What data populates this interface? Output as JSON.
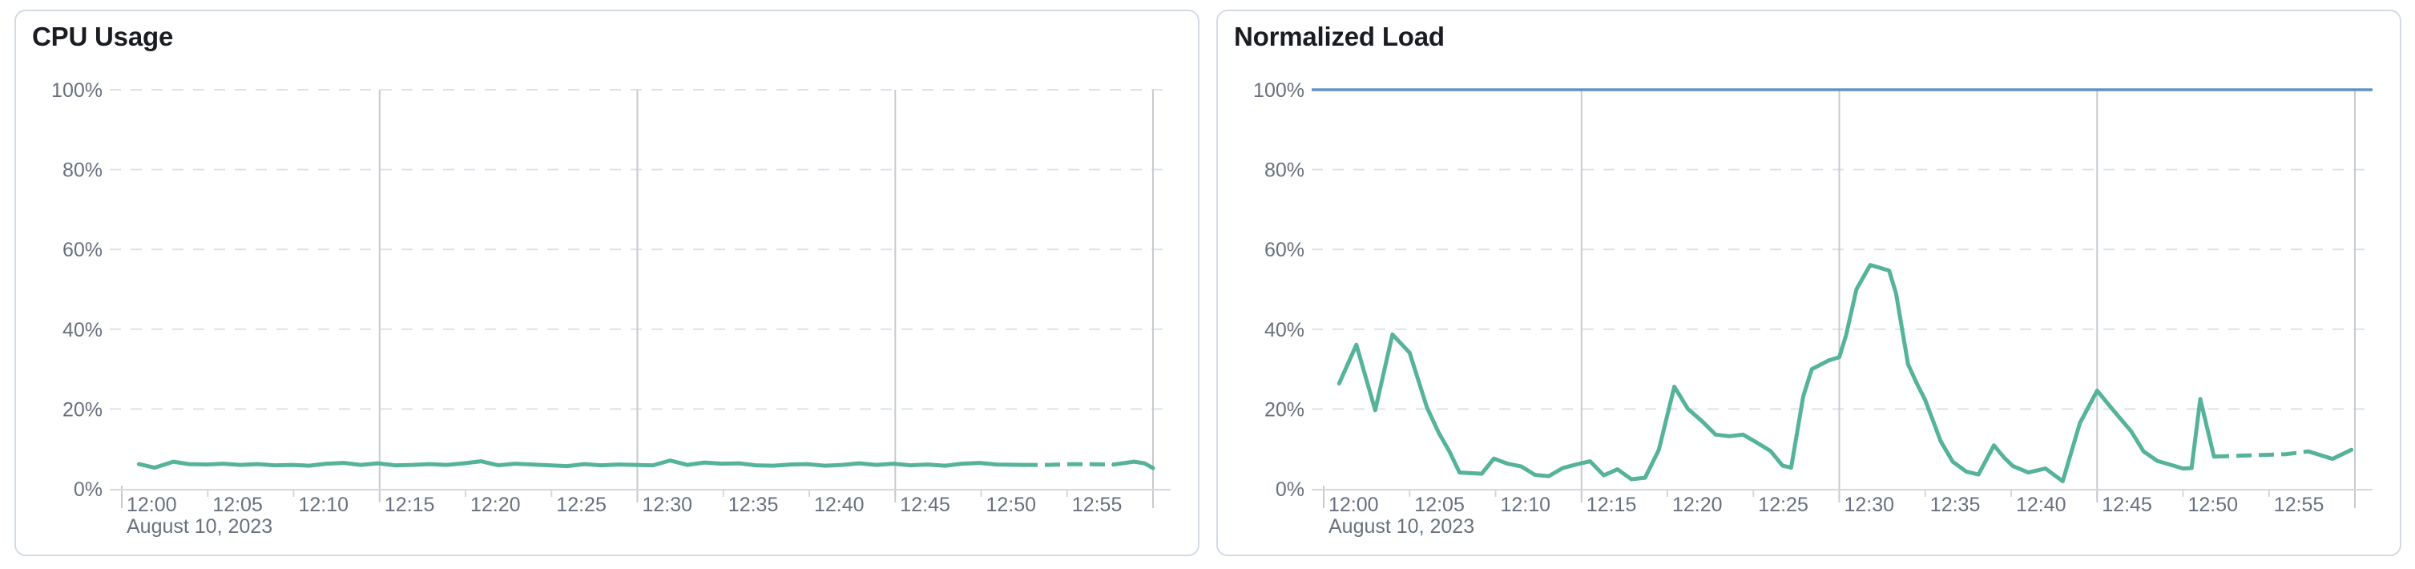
{
  "page": {
    "background": "#ffffff"
  },
  "colors": {
    "series_green": "#54b399",
    "limit_blue": "#6092c0",
    "grid_dashed": "#dce2ec",
    "grid_solid": "#c7cacf",
    "axis_line": "#d3d8e0",
    "tick_text": "#69707d",
    "title_text": "#1a1c21",
    "card_border": "#d3dae6",
    "card_bg": "#ffffff"
  },
  "chart_data": [
    {
      "type": "line",
      "title": "CPU Usage",
      "date_label": "August 10, 2023",
      "x_tick_labels": [
        "12:00",
        "12:05",
        "12:10",
        "12:15",
        "12:20",
        "12:25",
        "12:30",
        "12:35",
        "12:40",
        "12:45",
        "12:50",
        "12:55"
      ],
      "x_tick_minutes": [
        0,
        5,
        10,
        15,
        20,
        25,
        30,
        35,
        40,
        45,
        50,
        55
      ],
      "major_grid_minutes": [
        15,
        30,
        45
      ],
      "edge_grid_minutes": [
        0,
        60
      ],
      "y_tick_labels": [
        "0%",
        "20%",
        "40%",
        "60%",
        "80%",
        "100%"
      ],
      "y_tick_values": [
        0,
        20,
        40,
        60,
        80,
        100
      ],
      "ylim": [
        0,
        100
      ],
      "xlim_minutes": [
        0,
        61
      ],
      "grid": "horizontal-dashed, vertical-solid-every-15min",
      "legend": "none",
      "series": [
        {
          "name": "cpu-usage",
          "color": "#54b399",
          "dashed_from_min": 52.4,
          "dashed_to_min": 57.7,
          "points_min_pct": [
            [
              1.0,
              6.2
            ],
            [
              1.9,
              5.3
            ],
            [
              3.0,
              6.8
            ],
            [
              3.9,
              6.2
            ],
            [
              4.9,
              6.1
            ],
            [
              5.9,
              6.3
            ],
            [
              6.9,
              6.0
            ],
            [
              7.9,
              6.2
            ],
            [
              8.9,
              5.9
            ],
            [
              9.9,
              6.0
            ],
            [
              10.9,
              5.8
            ],
            [
              11.9,
              6.3
            ],
            [
              12.9,
              6.5
            ],
            [
              13.9,
              6.0
            ],
            [
              14.9,
              6.4
            ],
            [
              15.9,
              5.9
            ],
            [
              16.9,
              6.0
            ],
            [
              17.9,
              6.2
            ],
            [
              18.9,
              6.0
            ],
            [
              19.9,
              6.4
            ],
            [
              20.9,
              6.9
            ],
            [
              21.9,
              5.9
            ],
            [
              22.9,
              6.3
            ],
            [
              23.9,
              6.1
            ],
            [
              24.9,
              5.9
            ],
            [
              25.9,
              5.7
            ],
            [
              26.9,
              6.2
            ],
            [
              27.9,
              5.9
            ],
            [
              28.9,
              6.1
            ],
            [
              29.9,
              6.0
            ],
            [
              30.9,
              5.9
            ],
            [
              31.9,
              7.1
            ],
            [
              32.9,
              6.0
            ],
            [
              33.9,
              6.6
            ],
            [
              34.9,
              6.3
            ],
            [
              35.9,
              6.4
            ],
            [
              36.9,
              5.9
            ],
            [
              37.9,
              5.8
            ],
            [
              38.9,
              6.1
            ],
            [
              39.9,
              6.2
            ],
            [
              40.9,
              5.8
            ],
            [
              41.9,
              6.0
            ],
            [
              42.9,
              6.4
            ],
            [
              43.9,
              6.0
            ],
            [
              44.9,
              6.3
            ],
            [
              45.9,
              5.9
            ],
            [
              46.9,
              6.1
            ],
            [
              47.9,
              5.8
            ],
            [
              48.9,
              6.3
            ],
            [
              49.9,
              6.5
            ],
            [
              50.9,
              6.1
            ],
            [
              52.4,
              6.0
            ],
            [
              53.9,
              6.0
            ],
            [
              55.4,
              6.2
            ],
            [
              57.7,
              6.1
            ],
            [
              58.9,
              6.8
            ],
            [
              59.5,
              6.4
            ],
            [
              60.0,
              5.2
            ]
          ]
        }
      ]
    },
    {
      "type": "line",
      "title": "Normalized Load",
      "date_label": "August 10, 2023",
      "x_tick_labels": [
        "12:00",
        "12:05",
        "12:10",
        "12:15",
        "12:20",
        "12:25",
        "12:30",
        "12:35",
        "12:40",
        "12:45",
        "12:50",
        "12:55"
      ],
      "x_tick_minutes": [
        0,
        5,
        10,
        15,
        20,
        25,
        30,
        35,
        40,
        45,
        50,
        55
      ],
      "major_grid_minutes": [
        15,
        30,
        45
      ],
      "edge_grid_minutes": [
        0,
        60
      ],
      "y_tick_labels": [
        "0%",
        "20%",
        "40%",
        "60%",
        "80%",
        "100%"
      ],
      "y_tick_values": [
        0,
        20,
        40,
        60,
        80,
        100
      ],
      "ylim": [
        0,
        100
      ],
      "xlim_minutes": [
        0,
        61
      ],
      "grid": "horizontal-dashed, vertical-solid-every-15min",
      "legend": "none",
      "limit_line": {
        "value_pct": 100,
        "color": "#6092c0"
      },
      "series": [
        {
          "name": "normalized-load",
          "color": "#54b399",
          "dashed_from_min": 51.8,
          "dashed_to_min": 57.3,
          "points_min_pct": [
            [
              0.9,
              26.4
            ],
            [
              1.9,
              36.1
            ],
            [
              3.0,
              19.7
            ],
            [
              4.0,
              38.7
            ],
            [
              5.0,
              34.1
            ],
            [
              6.0,
              20.5
            ],
            [
              6.7,
              14.0
            ],
            [
              7.3,
              9.5
            ],
            [
              7.9,
              4.1
            ],
            [
              9.2,
              3.8
            ],
            [
              9.9,
              7.6
            ],
            [
              10.7,
              6.3
            ],
            [
              11.5,
              5.6
            ],
            [
              12.3,
              3.5
            ],
            [
              13.1,
              3.2
            ],
            [
              13.9,
              5.2
            ],
            [
              14.7,
              6.1
            ],
            [
              15.5,
              6.9
            ],
            [
              16.3,
              3.4
            ],
            [
              17.1,
              4.9
            ],
            [
              17.9,
              2.4
            ],
            [
              18.7,
              2.8
            ],
            [
              19.5,
              9.8
            ],
            [
              20.4,
              25.6
            ],
            [
              21.2,
              20.0
            ],
            [
              22.0,
              17.0
            ],
            [
              22.8,
              13.6
            ],
            [
              23.6,
              13.2
            ],
            [
              24.4,
              13.6
            ],
            [
              25.2,
              11.6
            ],
            [
              26.0,
              9.5
            ],
            [
              26.7,
              5.8
            ],
            [
              27.2,
              5.3
            ],
            [
              27.9,
              23.2
            ],
            [
              28.4,
              30.0
            ],
            [
              29.4,
              32.2
            ],
            [
              30.0,
              33.0
            ],
            [
              30.4,
              38.6
            ],
            [
              31.0,
              50.0
            ],
            [
              31.8,
              56.1
            ],
            [
              32.9,
              54.7
            ],
            [
              33.3,
              49.0
            ],
            [
              34.0,
              31.2
            ],
            [
              34.5,
              26.5
            ],
            [
              35.0,
              22.2
            ],
            [
              35.9,
              11.9
            ],
            [
              36.6,
              6.8
            ],
            [
              37.4,
              4.3
            ],
            [
              38.1,
              3.6
            ],
            [
              39.0,
              10.9
            ],
            [
              39.6,
              7.8
            ],
            [
              40.1,
              5.7
            ],
            [
              41.0,
              4.1
            ],
            [
              42.0,
              5.1
            ],
            [
              43.0,
              1.9
            ],
            [
              44.0,
              16.5
            ],
            [
              45.0,
              24.6
            ],
            [
              46.0,
              19.4
            ],
            [
              47.0,
              14.3
            ],
            [
              47.7,
              9.4
            ],
            [
              48.5,
              7.0
            ],
            [
              49.3,
              6.0
            ],
            [
              50.0,
              5.1
            ],
            [
              50.5,
              5.2
            ],
            [
              51.0,
              22.5
            ],
            [
              51.8,
              8.1
            ],
            [
              53.2,
              8.3
            ],
            [
              54.6,
              8.5
            ],
            [
              56.0,
              8.7
            ],
            [
              57.3,
              9.4
            ],
            [
              58.7,
              7.5
            ],
            [
              59.8,
              9.8
            ]
          ]
        }
      ]
    }
  ]
}
